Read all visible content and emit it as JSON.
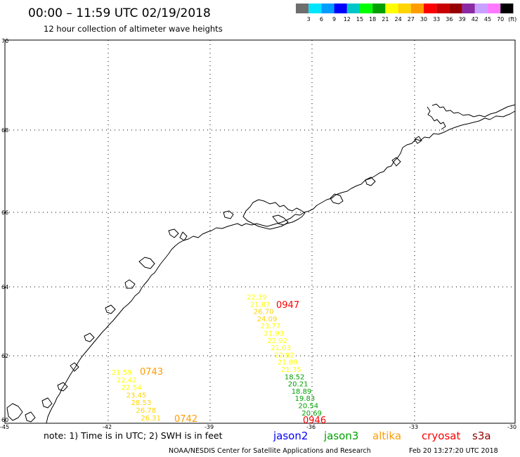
{
  "header": {
    "title": "00:00 – 11:59 UTC 02/19/2018",
    "subtitle": "12 hour collection of altimeter wave heights"
  },
  "legend": {
    "colors": [
      "#6e6e6e",
      "#00e5ff",
      "#009cff",
      "#0000ff",
      "#00c7c7",
      "#00ff00",
      "#00a000",
      "#ffff00",
      "#ffd400",
      "#ff9c00",
      "#ff0000",
      "#c80000",
      "#960000",
      "#8c2aa6",
      "#c8a0ff",
      "#ff78ff",
      "#000000"
    ],
    "labels": [
      "3",
      "6",
      "9",
      "12",
      "15",
      "18",
      "21",
      "24",
      "27",
      "30",
      "33",
      "36",
      "39",
      "42",
      "45",
      "70"
    ],
    "unit": "(ft)"
  },
  "lat_labels": [
    "70",
    "68",
    "66",
    "64",
    "62",
    "60"
  ],
  "lon_labels": [
    "-45",
    "-42",
    "-39",
    "-36",
    "-33",
    "-30"
  ],
  "tracks": [
    {
      "time": "0947",
      "time_color": "#ff0000",
      "heights": [
        {
          "v": "22.39",
          "c": "#ffff00"
        },
        {
          "v": "21.87",
          "c": "#ffff00"
        },
        {
          "v": "26.70",
          "c": "#ffd400"
        },
        {
          "v": "24.09",
          "c": "#ffd400"
        },
        {
          "v": "23.77",
          "c": "#ffff00"
        },
        {
          "v": "21.93",
          "c": "#ffff00"
        },
        {
          "v": "22.92",
          "c": "#ffff00"
        },
        {
          "v": "21.03",
          "c": "#ffff00"
        },
        {
          "v": "22.92",
          "c": "#ffff00"
        },
        {
          "v": "21.89",
          "c": "#ffff00"
        },
        {
          "v": "21.35",
          "c": "#ffff00"
        },
        {
          "v": "18.52",
          "c": "#00a000"
        },
        {
          "v": "20.21",
          "c": "#00a000"
        },
        {
          "v": "18.89",
          "c": "#00a000"
        },
        {
          "v": "19.83",
          "c": "#00a000"
        },
        {
          "v": "20.54",
          "c": "#00a000"
        },
        {
          "v": "20.69",
          "c": "#00a000"
        }
      ],
      "end_time": "0946",
      "end_time_color": "#ff0000"
    },
    {
      "time": "0743",
      "time_color": "#ff9c00",
      "heights": [
        {
          "v": "21.59",
          "c": "#ffff00"
        },
        {
          "v": "22.42",
          "c": "#ffff00"
        },
        {
          "v": "22.54",
          "c": "#ffff00"
        },
        {
          "v": "23.45",
          "c": "#ffd400"
        },
        {
          "v": "28.53",
          "c": "#ffd400"
        },
        {
          "v": "26.78",
          "c": "#ffd400"
        },
        {
          "v": "26.31",
          "c": "#ffd400"
        }
      ],
      "end_time": "0742",
      "end_time_color": "#ff9c00"
    }
  ],
  "footer": {
    "note": "note:  1) Time is in UTC;  2) SWH is in feet",
    "satellites": [
      {
        "name": "jason2",
        "color": "#0000ff"
      },
      {
        "name": "jason3",
        "color": "#00a000"
      },
      {
        "name": "altika",
        "color": "#ff9c00"
      },
      {
        "name": "cryosat",
        "color": "#ff0000"
      },
      {
        "name": "s3a",
        "color": "#960000"
      }
    ],
    "credit": "NOAA/NESDIS Center for Satellite Applications and Research",
    "timestamp": "Feb 20 13:27:20 UTC 2018"
  }
}
